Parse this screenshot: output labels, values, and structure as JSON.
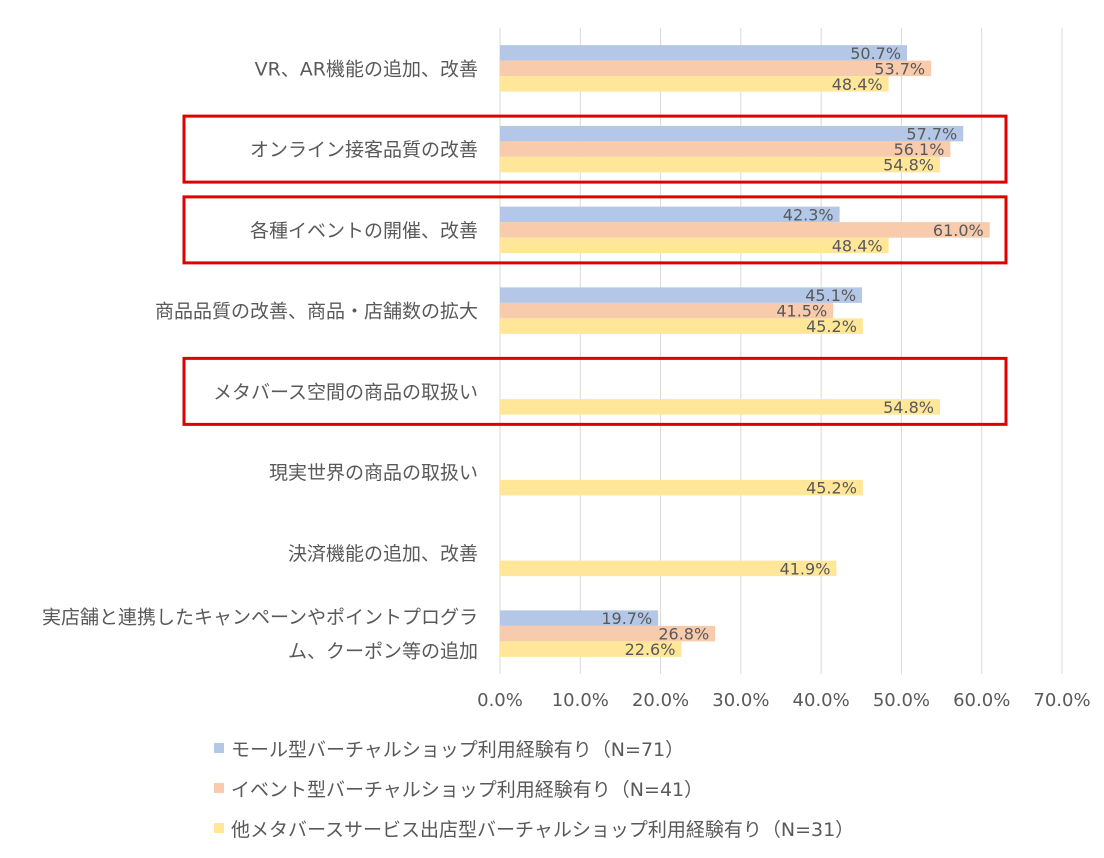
{
  "chart_data": {
    "type": "bar",
    "orientation": "horizontal",
    "categories": [
      "VR、AR機能の追加、改善",
      "オンライン接客品質の改善",
      "各種イベントの開催、改善",
      "商品品質の改善、商品・店舗数の拡大",
      "メタバース空間の商品の取扱い",
      "現実世界の商品の取扱い",
      "決済機能の追加、改善",
      [
        "実店舗と連携したキャンペーンやポイントプログラ",
        "ム、クーポン等の追加"
      ]
    ],
    "series": [
      {
        "name": "モール型バーチャルショップ利用経験有り（N=71）",
        "color": "#B4C7E7",
        "values": [
          50.7,
          57.7,
          42.3,
          45.1,
          null,
          null,
          null,
          19.7
        ]
      },
      {
        "name": "イベント型バーチャルショップ利用経験有り（N=41）",
        "color": "#F8CBAD",
        "values": [
          53.7,
          56.1,
          61.0,
          41.5,
          null,
          null,
          null,
          26.8
        ]
      },
      {
        "name": "他メタバースサービス出店型バーチャルショップ利用経験有り（N=31）",
        "color": "#FFE699",
        "values": [
          48.4,
          54.8,
          48.4,
          45.2,
          54.8,
          45.2,
          41.9,
          22.6
        ]
      }
    ],
    "xlim": [
      0,
      70
    ],
    "xticks": [
      "0.0%",
      "10.0%",
      "20.0%",
      "30.0%",
      "40.0%",
      "50.0%",
      "60.0%",
      "70.0%"
    ],
    "grid": true,
    "legend_position": "bottom",
    "highlighted_categories": [
      1,
      2,
      4
    ],
    "highlight_color": "#E00000"
  }
}
